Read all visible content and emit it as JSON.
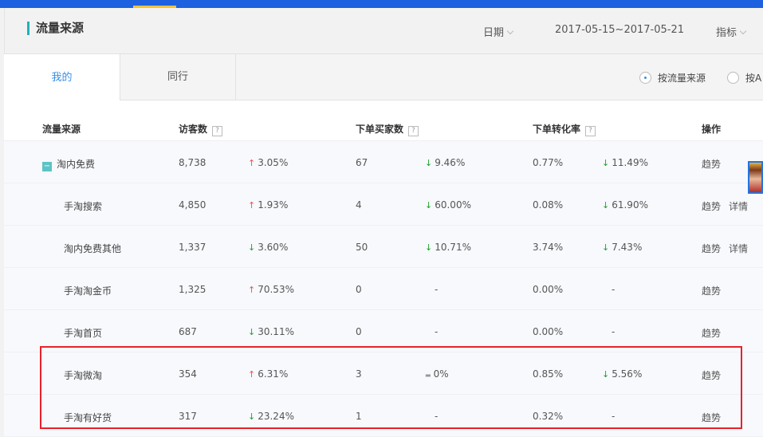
{
  "header": {
    "title": "流量来源",
    "date_label": "日期",
    "date_range": "2017-05-15~2017-05-21",
    "metric_label": "指标"
  },
  "tabs": [
    {
      "label": "我的",
      "active": true
    },
    {
      "label": "同行",
      "active": false
    }
  ],
  "radios": [
    {
      "label": "按流量来源",
      "selected": true
    },
    {
      "label": "按A",
      "selected": false
    }
  ],
  "table": {
    "columns": [
      "流量来源",
      "访客数",
      "下单买家数",
      "下单转化率",
      "操作"
    ],
    "rows": [
      {
        "source": "淘内免费",
        "group": true,
        "visitors": "8,738",
        "v_dir": "up",
        "v_change": "3.05%",
        "buyers": "67",
        "b_dir": "down",
        "b_change": "9.46%",
        "rate": "0.77%",
        "r_dir": "down",
        "r_change": "11.49%",
        "ops": [
          "趋势"
        ]
      },
      {
        "source": "手淘搜索",
        "visitors": "4,850",
        "v_dir": "up",
        "v_change": "1.93%",
        "buyers": "4",
        "b_dir": "down",
        "b_change": "60.00%",
        "rate": "0.08%",
        "r_dir": "down",
        "r_change": "61.90%",
        "ops": [
          "趋势",
          "详情"
        ]
      },
      {
        "source": "淘内免费其他",
        "visitors": "1,337",
        "v_dir": "down",
        "v_change": "3.60%",
        "buyers": "50",
        "b_dir": "down",
        "b_change": "10.71%",
        "rate": "3.74%",
        "r_dir": "down",
        "r_change": "7.43%",
        "ops": [
          "趋势",
          "详情"
        ]
      },
      {
        "source": "手淘淘金币",
        "visitors": "1,325",
        "v_dir": "up",
        "v_change": "70.53%",
        "buyers": "0",
        "b_dir": "none",
        "b_change": "-",
        "rate": "0.00%",
        "r_dir": "none",
        "r_change": "-",
        "ops": [
          "趋势"
        ]
      },
      {
        "source": "手淘首页",
        "visitors": "687",
        "v_dir": "down",
        "v_change": "30.11%",
        "buyers": "0",
        "b_dir": "none",
        "b_change": "-",
        "rate": "0.00%",
        "r_dir": "none",
        "r_change": "-",
        "ops": [
          "趋势"
        ]
      },
      {
        "source": "手淘微淘",
        "visitors": "354",
        "v_dir": "up",
        "v_change": "6.31%",
        "buyers": "3",
        "b_dir": "flat",
        "b_change": "0%",
        "rate": "0.85%",
        "r_dir": "down",
        "r_change": "5.56%",
        "ops": [
          "趋势"
        ]
      },
      {
        "source": "手淘有好货",
        "visitors": "317",
        "v_dir": "down",
        "v_change": "23.24%",
        "buyers": "1",
        "b_dir": "none",
        "b_change": "-",
        "rate": "0.32%",
        "r_dir": "none",
        "r_change": "-",
        "ops": [
          "趋势"
        ]
      }
    ]
  },
  "colors": {
    "topbar": "#1d61e0",
    "accent": "#3a8ee6",
    "up": "#f05050",
    "down": "#1fa12f",
    "highlight_box": "#e8212b"
  }
}
